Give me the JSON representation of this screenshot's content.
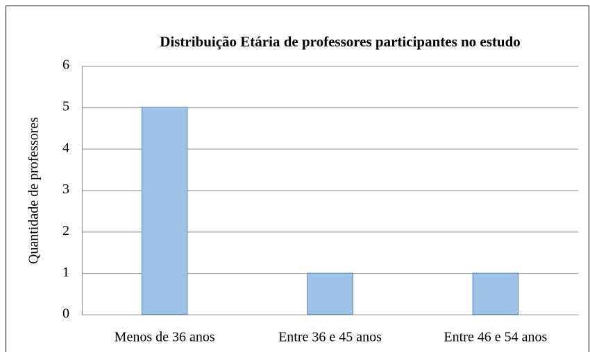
{
  "chart_data": {
    "type": "bar",
    "title": "Distribuição Etária de professores participantes no estudo",
    "y_label": "Quantidade de professores",
    "categories": [
      "Menos de 36 anos",
      "Entre 36 e 45 anos",
      "Entre 46 e 54 anos"
    ],
    "values": [
      5,
      1,
      1
    ],
    "color": "#9dc3e6",
    "ylim": [
      0,
      6
    ],
    "yticks": [
      0,
      1,
      2,
      3,
      4,
      5,
      6
    ],
    "grid": true
  }
}
